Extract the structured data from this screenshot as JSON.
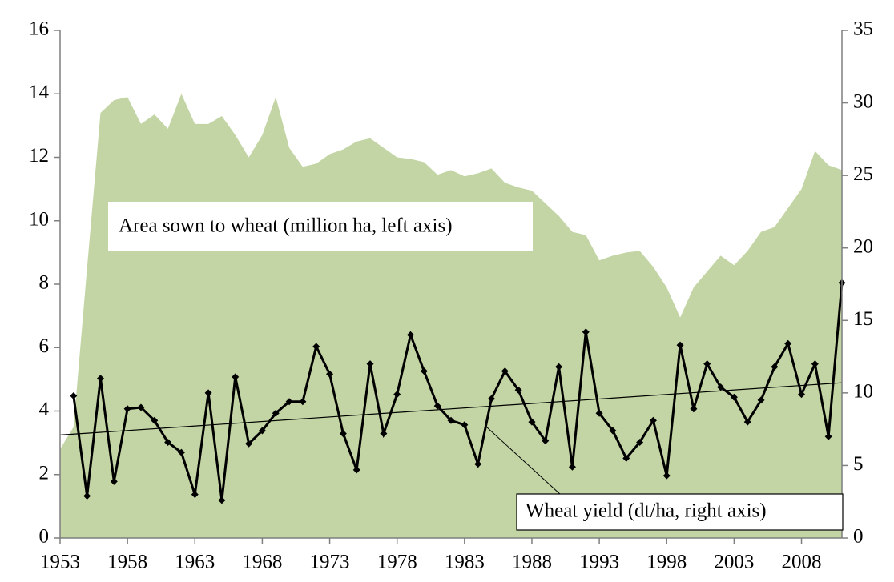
{
  "chart_data": {
    "type": "area-line",
    "x": [
      1953,
      1954,
      1955,
      1956,
      1957,
      1958,
      1959,
      1960,
      1961,
      1962,
      1963,
      1964,
      1965,
      1966,
      1967,
      1968,
      1969,
      1970,
      1971,
      1972,
      1973,
      1974,
      1975,
      1976,
      1977,
      1978,
      1979,
      1980,
      1981,
      1982,
      1983,
      1984,
      1985,
      1986,
      1987,
      1988,
      1989,
      1990,
      1991,
      1992,
      1993,
      1994,
      1995,
      1996,
      1997,
      1998,
      1999,
      2000,
      2001,
      2002,
      2003,
      2004,
      2005,
      2006,
      2007,
      2008,
      2009,
      2010,
      2011
    ],
    "xlim": [
      1953,
      2011
    ],
    "xticks": [
      1953,
      1958,
      1963,
      1968,
      1973,
      1978,
      1983,
      1988,
      1993,
      1998,
      2003,
      2008
    ],
    "ylim": [
      0,
      16
    ],
    "yticks": [
      0,
      2,
      4,
      6,
      8,
      10,
      12,
      14,
      16
    ],
    "y2lim": [
      0,
      35
    ],
    "y2ticks": [
      0,
      5,
      10,
      15,
      20,
      25,
      30,
      35
    ],
    "series": [
      {
        "name": "Area sown to wheat (million ha, left axis)",
        "type": "area",
        "color": "#c3d5a5",
        "values": [
          2.8,
          3.5,
          8.5,
          13.4,
          13.8,
          13.9,
          13.05,
          13.35,
          12.9,
          14.0,
          13.05,
          13.05,
          13.3,
          12.7,
          12.0,
          12.7,
          13.9,
          12.3,
          11.7,
          11.8,
          12.1,
          12.25,
          12.5,
          12.6,
          12.3,
          12.0,
          11.95,
          11.85,
          11.45,
          11.6,
          11.4,
          11.5,
          11.65,
          11.2,
          11.05,
          10.95,
          10.55,
          10.15,
          9.65,
          9.55,
          8.75,
          8.9,
          9.0,
          9.05,
          8.55,
          7.9,
          6.95,
          7.9,
          8.4,
          8.9,
          8.6,
          9.05,
          9.65,
          9.8,
          10.4,
          11.0,
          12.2,
          11.75,
          11.6
        ]
      },
      {
        "name": "Wheat yield (dt/ha, right axis)",
        "type": "line",
        "axis": "y2",
        "color": "#000000",
        "values": [
          null,
          9.8,
          2.9,
          11.0,
          3.9,
          8.9,
          9.0,
          8.1,
          6.6,
          5.9,
          3.0,
          10.0,
          2.6,
          11.1,
          6.5,
          7.4,
          8.6,
          9.4,
          9.4,
          13.2,
          11.3,
          7.2,
          4.7,
          12.0,
          7.2,
          9.9,
          14.0,
          11.5,
          9.1,
          8.1,
          7.8,
          5.1,
          9.6,
          11.5,
          10.2,
          8.0,
          6.7,
          11.8,
          4.9,
          14.2,
          8.6,
          7.4,
          5.5,
          6.6,
          8.1,
          4.3,
          13.3,
          8.9,
          12.0,
          10.4,
          9.7,
          8.0,
          9.5,
          11.8,
          13.4,
          9.9,
          12.0,
          7.0,
          17.6
        ]
      }
    ],
    "trendline": {
      "x": [
        1953,
        2011
      ],
      "values": [
        7.1,
        10.7
      ],
      "axis": "y2",
      "color": "#000000"
    }
  }
}
